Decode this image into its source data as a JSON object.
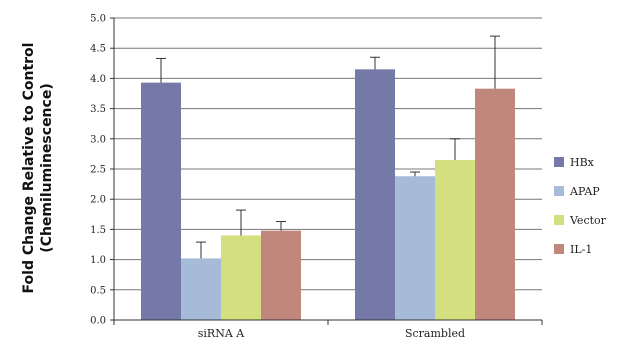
{
  "chart_data": {
    "type": "bar",
    "categories": [
      "siRNA A",
      "Scrambled"
    ],
    "ylabel_lines": [
      "Fold Change Relative to Control",
      "(Chemiluminescence)"
    ],
    "ylim": [
      0,
      5
    ],
    "yticks": [
      "0.0",
      "0.5",
      "1.0",
      "1.5",
      "2.0",
      "2.5",
      "3.0",
      "3.5",
      "4.0",
      "4.5",
      "5.0"
    ],
    "grid": true,
    "legend_position": "right",
    "series": [
      {
        "name": "HBx",
        "color": "#7579a8",
        "values": [
          3.93,
          4.15
        ],
        "errors": [
          0.4,
          0.2
        ]
      },
      {
        "name": "APAP",
        "color": "#a5bbd8",
        "values": [
          1.02,
          2.38
        ],
        "errors": [
          0.27,
          0.07
        ]
      },
      {
        "name": "Vector",
        "color": "#d4e07f",
        "values": [
          1.4,
          2.65
        ],
        "errors": [
          0.42,
          0.35
        ]
      },
      {
        "name": "IL-1",
        "color": "#c0877c",
        "values": [
          1.48,
          3.83
        ],
        "errors": [
          0.15,
          0.87
        ]
      }
    ]
  }
}
